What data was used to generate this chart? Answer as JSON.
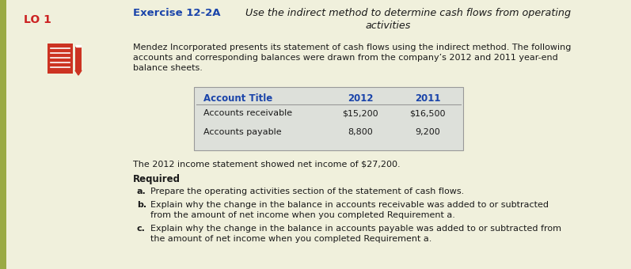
{
  "bg_color": "#f0f0dc",
  "lo_text": "LO 1",
  "lo_color": "#cc2222",
  "exercise_label": "Exercise 12-2A",
  "exercise_label_color": "#1a44aa",
  "exercise_title_line1": "Use the indirect method to determine cash flows from operating",
  "exercise_title_line2": "activities",
  "body_text_line1": "Mendez Incorporated presents its statement of cash flows using the indirect method. The following",
  "body_text_line2": "accounts and corresponding balances were drawn from the company’s 2012 and 2011 year-end",
  "body_text_line3": "balance sheets.",
  "table_header": [
    "Account Title",
    "2012",
    "2011"
  ],
  "table_header_color": "#1a44aa",
  "table_rows": [
    [
      "Accounts receivable",
      "$15,200",
      "$16,500"
    ],
    [
      "Accounts payable",
      "8,800",
      "9,200"
    ]
  ],
  "table_bg": "#dde0da",
  "table_border_color": "#999999",
  "income_text": "The 2012 income statement showed net income of $27,200.",
  "required_label": "Required",
  "req_a_label": "a.",
  "req_a_text": "Prepare the operating activities section of the statement of cash flows.",
  "req_b_label": "b.",
  "req_b_text_line1": "Explain why the change in the balance in accounts receivable was added to or subtracted",
  "req_b_text_line2": "from the amount of net income when you completed Requirement a.",
  "req_c_label": "c.",
  "req_c_text_line1": "Explain why the change in the balance in accounts payable was added to or subtracted from",
  "req_c_text_line2": "the amount of net income when you completed Requirement a.",
  "icon_red": "#cc3322",
  "text_color": "#1a1a1a",
  "left_bar_color": "#9aaa44",
  "left_bar_width": 8
}
